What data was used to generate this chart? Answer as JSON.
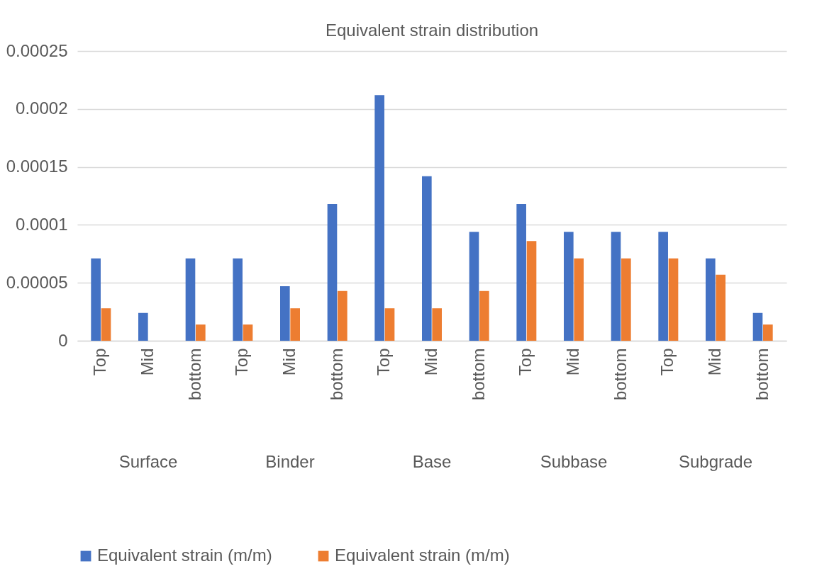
{
  "chart_data": {
    "type": "bar",
    "title": "Equivalent strain distribution",
    "categories": [
      "Top",
      "Mid",
      "bottom",
      "Top",
      "Mid",
      "bottom",
      "Top",
      "Mid",
      "bottom",
      "Top",
      "Mid",
      "bottom",
      "Top",
      "Mid",
      "bottom"
    ],
    "annotations": [
      "Surface",
      "Binder",
      "Base",
      "Subbase",
      "Subgrade"
    ],
    "series": [
      {
        "name": "Equivalent strain (m/m)",
        "color": "#4472c4",
        "values": [
          7.1e-05,
          2.4e-05,
          7.1e-05,
          7.1e-05,
          4.7e-05,
          0.000118,
          0.000212,
          0.000142,
          9.4e-05,
          0.000118,
          9.4e-05,
          9.4e-05,
          9.4e-05,
          7.1e-05,
          2.4e-05
        ]
      },
      {
        "name": "Equivalent strain (m/m)",
        "color": "#ed7d31",
        "values": [
          2.8e-05,
          0,
          1.4e-05,
          1.4e-05,
          2.8e-05,
          4.3e-05,
          2.8e-05,
          2.8e-05,
          4.3e-05,
          8.6e-05,
          7.1e-05,
          7.1e-05,
          7.1e-05,
          5.7e-05,
          1.4e-05
        ]
      }
    ],
    "ylim": [
      0,
      0.00025
    ],
    "yticks": [
      0,
      {
        "value": 5e-05,
        "label": "0.00005"
      },
      0.0001,
      0.00015,
      0.0002,
      0.00025
    ],
    "grid": true,
    "legend": "bottom"
  }
}
